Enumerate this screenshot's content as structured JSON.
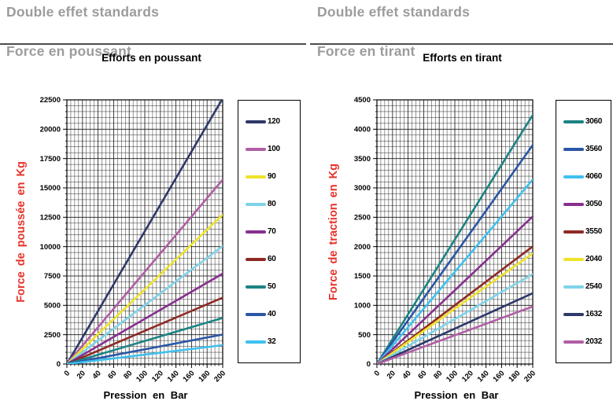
{
  "colors": {
    "axis_title_red": "#e8332b",
    "header_gray": "#9c9c9c",
    "grid": "#2e2e2e"
  },
  "panels": [
    {
      "header_line1": "Double effet standards",
      "header_line2": "Force en poussant"
    },
    {
      "header_line1": "Double effet standards",
      "header_line2": "Force en tirant"
    }
  ],
  "chart_data": [
    {
      "type": "line",
      "title": "Efforts en poussant",
      "xlabel": "Pression en Bar",
      "ylabel": "Force de poussée en Kg",
      "xlim": [
        0,
        200
      ],
      "ylim": [
        0,
        22500
      ],
      "x_minor": 5,
      "y_minor": 500,
      "x_ticks": [
        0,
        20,
        40,
        60,
        80,
        100,
        120,
        140,
        160,
        180,
        200
      ],
      "y_ticks": [
        0,
        2500,
        5000,
        7500,
        10000,
        12500,
        15000,
        17500,
        20000,
        22500
      ],
      "grid": true,
      "legend_position": "right",
      "x": [
        0,
        200
      ],
      "series": [
        {
          "name": "120",
          "color": "#2e3969",
          "values": [
            0,
            22620
          ]
        },
        {
          "name": "100",
          "color": "#b15ea4",
          "values": [
            0,
            15708
          ]
        },
        {
          "name": "90",
          "color": "#efe32b",
          "values": [
            0,
            12723
          ]
        },
        {
          "name": "80",
          "color": "#7fd3e8",
          "values": [
            0,
            10053
          ]
        },
        {
          "name": "70",
          "color": "#87308e",
          "values": [
            0,
            7697
          ]
        },
        {
          "name": "60",
          "color": "#8e2a25",
          "values": [
            0,
            5655
          ]
        },
        {
          "name": "50",
          "color": "#1c8383",
          "values": [
            0,
            3927
          ]
        },
        {
          "name": "40",
          "color": "#2a56a5",
          "values": [
            0,
            2513
          ]
        },
        {
          "name": "32",
          "color": "#3ec1ef",
          "values": [
            0,
            1608
          ]
        }
      ]
    },
    {
      "type": "line",
      "title": "Efforts en tirant",
      "xlabel": "Pression en Bar",
      "ylabel": "Force de traction en Kg",
      "xlim": [
        0,
        200
      ],
      "ylim": [
        0,
        4500
      ],
      "x_minor": 5,
      "y_minor": 100,
      "x_ticks": [
        0,
        20,
        40,
        60,
        80,
        100,
        120,
        140,
        160,
        180,
        200
      ],
      "y_ticks": [
        0,
        500,
        1000,
        1500,
        2000,
        2500,
        3000,
        3500,
        4000,
        4500
      ],
      "grid": true,
      "legend_position": "right",
      "x": [
        0,
        200
      ],
      "series": [
        {
          "name": "3060",
          "color": "#1c8383",
          "values": [
            0,
            4241
          ]
        },
        {
          "name": "3560",
          "color": "#2a56a5",
          "values": [
            0,
            3730
          ]
        },
        {
          "name": "4060",
          "color": "#3ec1ef",
          "values": [
            0,
            3142
          ]
        },
        {
          "name": "3050",
          "color": "#87308e",
          "values": [
            0,
            2513
          ]
        },
        {
          "name": "3550",
          "color": "#8e2a25",
          "values": [
            0,
            2003
          ]
        },
        {
          "name": "2040",
          "color": "#efe32b",
          "values": [
            0,
            1885
          ]
        },
        {
          "name": "2540",
          "color": "#7fd3e8",
          "values": [
            0,
            1532
          ]
        },
        {
          "name": "1632",
          "color": "#2e3969",
          "values": [
            0,
            1206
          ]
        },
        {
          "name": "2032",
          "color": "#b15ea4",
          "values": [
            0,
            980
          ]
        }
      ]
    }
  ]
}
